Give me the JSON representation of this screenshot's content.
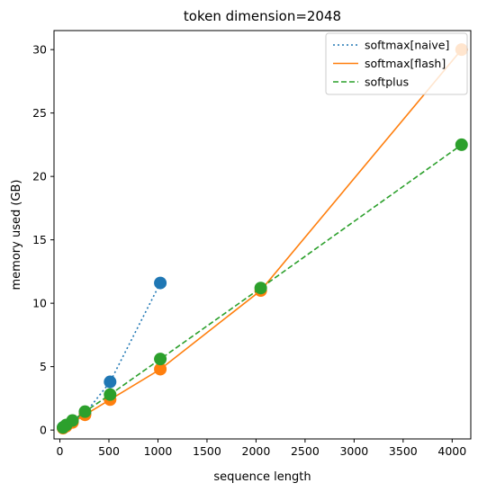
{
  "chart_data": {
    "type": "line",
    "title": "token dimension=2048",
    "xlabel": "sequence length",
    "ylabel": "memory used (GB)",
    "xlim": [
      -60,
      4190
    ],
    "ylim": [
      -0.7,
      31.5
    ],
    "xticks": [
      0,
      500,
      1000,
      1500,
      2000,
      2500,
      3000,
      3500,
      4000
    ],
    "yticks": [
      0,
      5,
      10,
      15,
      20,
      25,
      30
    ],
    "grid": false,
    "legend": {
      "position": "top-right"
    },
    "series": [
      {
        "name": "softmax[naive]",
        "color": "#1f77b4",
        "line_style": "dotted",
        "x": [
          32,
          64,
          128,
          256,
          512,
          1024
        ],
        "y": [
          0.2,
          0.35,
          0.7,
          1.3,
          3.8,
          11.6
        ]
      },
      {
        "name": "softmax[flash]",
        "color": "#ff7f0e",
        "line_style": "solid",
        "x": [
          32,
          64,
          128,
          256,
          512,
          1024,
          2048,
          4096
        ],
        "y": [
          0.15,
          0.3,
          0.6,
          1.2,
          2.4,
          4.8,
          11.0,
          30.0
        ]
      },
      {
        "name": "softplus",
        "color": "#2ca02c",
        "line_style": "dashed",
        "x": [
          32,
          64,
          128,
          256,
          512,
          1024,
          2048,
          4096
        ],
        "y": [
          0.2,
          0.4,
          0.75,
          1.45,
          2.8,
          5.6,
          11.2,
          22.5
        ]
      }
    ]
  }
}
